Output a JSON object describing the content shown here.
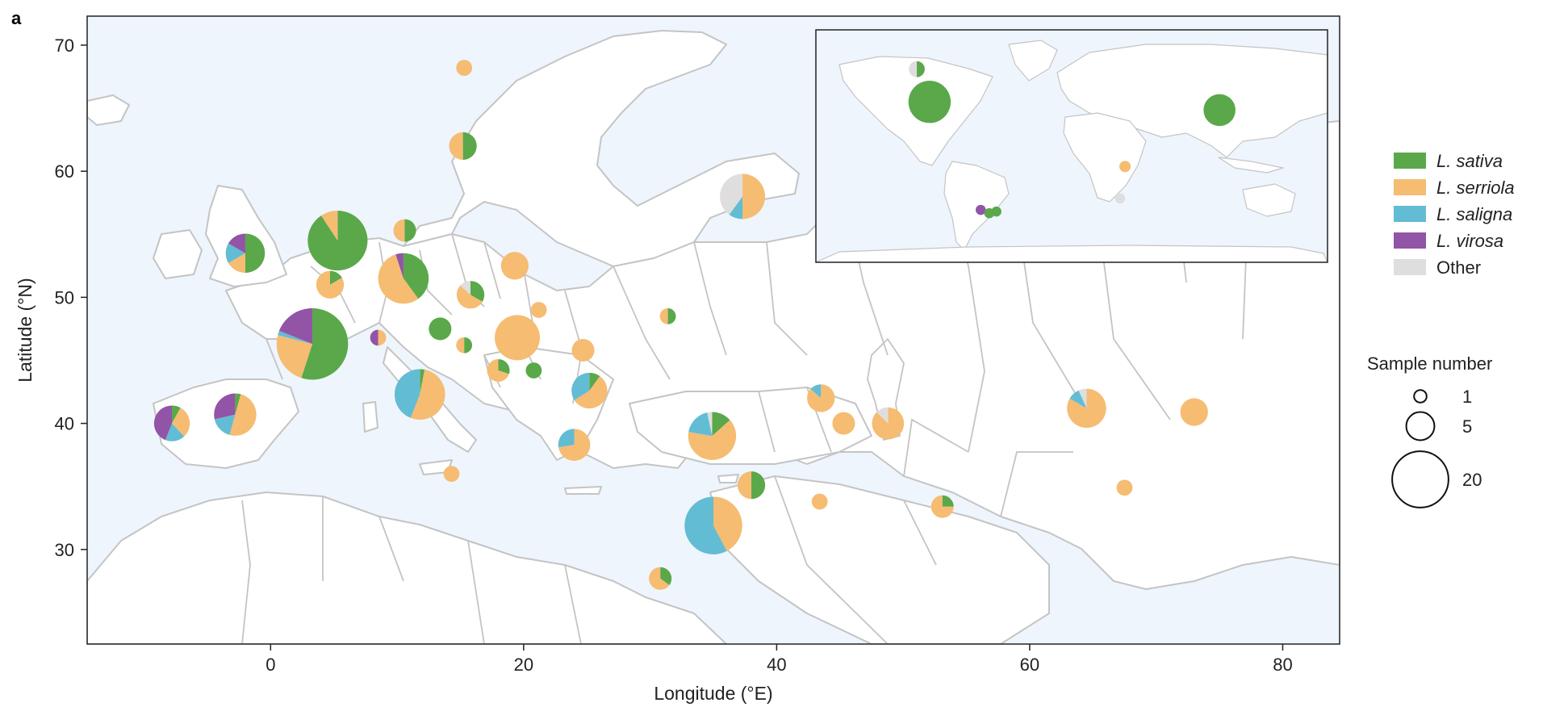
{
  "panel_label": "a",
  "colors": {
    "sea": "#eef5fd",
    "land": "#ffffff",
    "border": "#c4c4c4",
    "L. sativa": "#5aa84a",
    "L. serriola": "#f5bc72",
    "L. saligna": "#62bcd4",
    "L. virosa": "#9254a6",
    "Other": "#dedede"
  },
  "legend": {
    "species": [
      {
        "key": "L. sativa",
        "label": "L. sativa",
        "italic": true
      },
      {
        "key": "L. serriola",
        "label": "L. serriola",
        "italic": true
      },
      {
        "key": "L. saligna",
        "label": "L. saligna",
        "italic": true
      },
      {
        "key": "L. virosa",
        "label": "L. virosa",
        "italic": true
      },
      {
        "key": "Other",
        "label": "Other",
        "italic": false
      }
    ],
    "size_title": "Sample number",
    "size_entries": [
      1,
      5,
      20
    ]
  },
  "chart_data": {
    "type": "map-pie",
    "xlabel": "Longitude (°E)",
    "ylabel": "Latitude (°N)",
    "xlim": [
      -14.5,
      84.5
    ],
    "ylim": [
      22.5,
      72.3
    ],
    "xticks": [
      0,
      20,
      40,
      60,
      80
    ],
    "yticks": [
      30,
      40,
      50,
      60,
      70
    ],
    "series_order": [
      "L. sativa",
      "L. serriola",
      "L. saligna",
      "L. virosa",
      "Other"
    ],
    "pies": [
      {
        "lon": 15.3,
        "lat": 68.2,
        "n": 1,
        "L. serriola": 1
      },
      {
        "lon": 15.2,
        "lat": 62.0,
        "n": 3,
        "L. sativa": 1.5,
        "L. serriola": 1.5
      },
      {
        "lon": 37.3,
        "lat": 58.0,
        "n": 8,
        "L. serriola": 4,
        "L. saligna": 0.8,
        "Other": 3.2
      },
      {
        "lon": 5.3,
        "lat": 54.5,
        "n": 14,
        "L. sativa": 12.7,
        "L. serriola": 1.3
      },
      {
        "lon": -2.0,
        "lat": 53.5,
        "n": 6,
        "L. sativa": 3,
        "L. serriola": 1,
        "L. saligna": 1,
        "L. virosa": 1
      },
      {
        "lon": 10.6,
        "lat": 55.3,
        "n": 2,
        "L. sativa": 1,
        "L. serriola": 1
      },
      {
        "lon": 10.5,
        "lat": 51.5,
        "n": 10,
        "L. sativa": 4,
        "L. serriola": 5.5,
        "L. virosa": 0.5
      },
      {
        "lon": 4.7,
        "lat": 51.0,
        "n": 3,
        "L. sativa": 0.5,
        "L. serriola": 2.5
      },
      {
        "lon": 19.3,
        "lat": 52.5,
        "n": 3,
        "L. serriola": 3
      },
      {
        "lon": 15.8,
        "lat": 50.2,
        "n": 3,
        "L. sativa": 1,
        "L. serriola": 1.6,
        "Other": 0.4
      },
      {
        "lon": 21.2,
        "lat": 49.0,
        "n": 1,
        "L. serriola": 1
      },
      {
        "lon": 31.4,
        "lat": 48.5,
        "n": 1,
        "L. sativa": 0.5,
        "L. serriola": 0.5
      },
      {
        "lon": 3.3,
        "lat": 46.3,
        "n": 20,
        "L. sativa": 11,
        "L. serriola": 4.8,
        "L. saligna": 0.4,
        "L. virosa": 3.8
      },
      {
        "lon": 8.5,
        "lat": 46.8,
        "n": 1,
        "L. serriola": 0.5,
        "L. virosa": 0.5
      },
      {
        "lon": 13.4,
        "lat": 47.5,
        "n": 2,
        "L. sativa": 2
      },
      {
        "lon": 19.5,
        "lat": 46.8,
        "n": 8,
        "L. serriola": 8
      },
      {
        "lon": 15.3,
        "lat": 46.2,
        "n": 1,
        "L. sativa": 0.5,
        "L. serriola": 0.5
      },
      {
        "lon": 24.7,
        "lat": 45.8,
        "n": 2,
        "L. serriola": 2
      },
      {
        "lon": 18.0,
        "lat": 44.2,
        "n": 2,
        "L. sativa": 0.6,
        "L. serriola": 1.4
      },
      {
        "lon": 20.8,
        "lat": 44.2,
        "n": 1,
        "L. sativa": 1
      },
      {
        "lon": 11.8,
        "lat": 42.3,
        "n": 10,
        "L. sativa": 0.3,
        "L. serriola": 5.3,
        "L. saligna": 4.4
      },
      {
        "lon": 25.2,
        "lat": 42.6,
        "n": 5,
        "L. sativa": 0.5,
        "L. serriola": 2.8,
        "L. saligna": 1.7
      },
      {
        "lon": -7.8,
        "lat": 40.0,
        "n": 5,
        "L. sativa": 0.4,
        "L. serriola": 1.5,
        "L. saligna": 0.9,
        "L. virosa": 2.2
      },
      {
        "lon": -2.8,
        "lat": 40.7,
        "n": 7,
        "L. sativa": 0.3,
        "L. serriola": 3.5,
        "L. saligna": 1.2,
        "L. virosa": 2.0
      },
      {
        "lon": 24.0,
        "lat": 38.3,
        "n": 4,
        "L. serriola": 2.9,
        "L. saligna": 1.1
      },
      {
        "lon": 34.9,
        "lat": 39.0,
        "n": 9,
        "L. sativa": 1.2,
        "L. serriola": 5.8,
        "L. saligna": 1.7,
        "Other": 0.3
      },
      {
        "lon": 43.5,
        "lat": 42.0,
        "n": 3,
        "L. serriola": 2.6,
        "L. saligna": 0.4
      },
      {
        "lon": 45.3,
        "lat": 40.0,
        "n": 2,
        "L. serriola": 2
      },
      {
        "lon": 48.8,
        "lat": 40.0,
        "n": 4,
        "L. serriola": 3.5,
        "Other": 0.5
      },
      {
        "lon": 64.5,
        "lat": 41.2,
        "n": 6,
        "L. serriola": 5,
        "L. saligna": 0.6,
        "Other": 0.4
      },
      {
        "lon": 73.0,
        "lat": 40.9,
        "n": 3,
        "L. serriola": 3
      },
      {
        "lon": 14.3,
        "lat": 36.0,
        "n": 1,
        "L. serriola": 1
      },
      {
        "lon": 38.0,
        "lat": 35.1,
        "n": 3,
        "L. sativa": 1.5,
        "L. serriola": 1.5
      },
      {
        "lon": 43.4,
        "lat": 33.8,
        "n": 1,
        "L. serriola": 1
      },
      {
        "lon": 53.1,
        "lat": 33.4,
        "n": 2,
        "L. sativa": 0.5,
        "L. serriola": 1.5
      },
      {
        "lon": 67.5,
        "lat": 34.9,
        "n": 1,
        "L. serriola": 1
      },
      {
        "lon": 35.0,
        "lat": 31.9,
        "n": 13,
        "L. serriola": 5.5,
        "L. saligna": 7.5
      },
      {
        "lon": 30.8,
        "lat": 27.7,
        "n": 2,
        "L. sativa": 0.7,
        "L. serriola": 1.3
      }
    ],
    "inset": {
      "xlim": [
        -180,
        180
      ],
      "ylim": [
        -58,
        84
      ],
      "pies": [
        {
          "lon": -100,
          "lat": 40,
          "n": 7,
          "L. sativa": 7
        },
        {
          "lon": -109,
          "lat": 60,
          "n": 1,
          "L. sativa": 0.5,
          "Other": 0.5
        },
        {
          "lon": 104,
          "lat": 35,
          "n": 4,
          "L. sativa": 4
        },
        {
          "lon": 37.5,
          "lat": 0.5,
          "n": 0.5,
          "L. serriola": 0.5
        },
        {
          "lon": 34,
          "lat": -19,
          "n": 0.4,
          "Other": 0.4
        },
        {
          "lon": -64,
          "lat": -26,
          "n": 0.4,
          "L. virosa": 0.4
        },
        {
          "lon": -58,
          "lat": -28,
          "n": 0.4,
          "L. sativa": 0.4
        },
        {
          "lon": -53,
          "lat": -27,
          "n": 0.4,
          "L. sativa": 0.4
        }
      ]
    }
  }
}
